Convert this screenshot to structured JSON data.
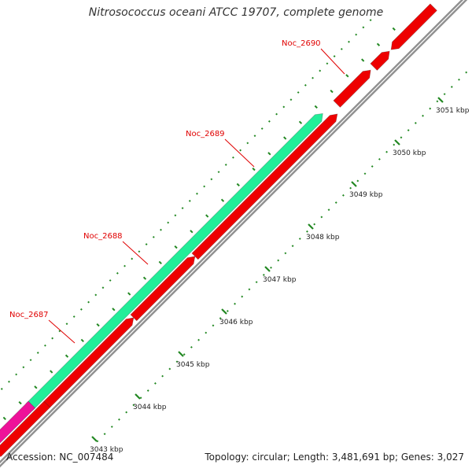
{
  "title": "Nitrosococcus oceani ATCC 19707, complete genome",
  "footer": {
    "accession": "Accession: NC_007484",
    "summary": "Topology: circular; Length: 3,481,691 bp; Genes: 3,027"
  },
  "colors": {
    "backbone": "#8f8f8f",
    "gene_red": "#ee0000",
    "gene_green": "#22ee99",
    "gene_magenta": "#ee1199",
    "gene_blue": "#1122ee",
    "gc_tick": "#228822",
    "label_red": "#e00000"
  },
  "gene_labels": [
    "Noc_2687",
    "Noc_2688",
    "Noc_2689",
    "Noc_2690"
  ],
  "scale_ticks": [
    "3043 kbp",
    "3044 kbp",
    "3045 kbp",
    "3046 kbp",
    "3047 kbp",
    "3048 kbp",
    "3049 kbp",
    "3050 kbp",
    "3051 kbp"
  ]
}
